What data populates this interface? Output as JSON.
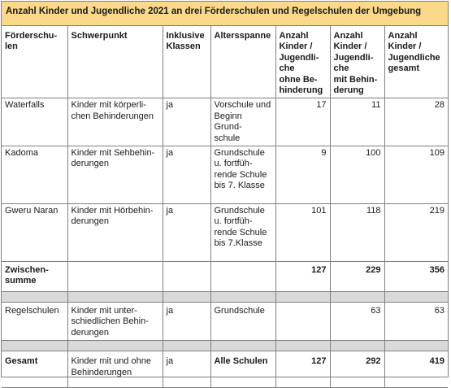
{
  "title": "Anzahl Kinder und Jugendliche 2021 an drei Förderschulen und Regelschulen der Umgebung",
  "headers": {
    "schule": "Förderschu-\nlen",
    "schwerpunkt": "Schwerpunkt",
    "inklusive": "Inklusive\nKlassen",
    "altersspanne": "Altersspanne",
    "ohne": "Anzahl\nKinder /\nJugendli-\nche\nohne Be-\nhinderung",
    "mit": "Anzahl\nKinder /\nJugendli-\nche\nmit Behin-\nderung",
    "gesamt": "Anzahl\nKinder /\nJugendliche\ngesamt"
  },
  "rows": [
    {
      "schule": "Waterfalls",
      "schwerpunkt": "Kinder mit körperli-\nchen  Behinderungen",
      "inklusive": "ja",
      "altersspanne": "Vorschule und\nBeginn Grund-\nschule",
      "ohne": "17",
      "mit": "11",
      "gesamt": "28"
    },
    {
      "schule": "Kadoma",
      "schwerpunkt": "Kinder mit Sehbehin-\nderungen",
      "inklusive": "ja",
      "altersspanne": "Grundschule\nu. fortfüh-\nrende Schule\nbis 7. Klasse",
      "ohne": "9",
      "mit": "100",
      "gesamt": "109"
    },
    {
      "schule": "Gweru Naran",
      "schwerpunkt": "Kinder mit Hörbehin-\nderungen",
      "inklusive": "ja",
      "altersspanne": "Grundschule\nu. fortfüh-\nrende Schule\nbis 7.Klasse",
      "ohne": "101",
      "mit": "118",
      "gesamt": "219"
    },
    {
      "schule": "Zwischen-\nsumme",
      "schwerpunkt": "",
      "inklusive": "",
      "altersspanne": "",
      "ohne": "127",
      "mit": "229",
      "gesamt": "356"
    },
    {
      "schule": "Regelschulen",
      "schwerpunkt": "Kinder mit unter-\nschiedlichen Behin-\nderungen",
      "inklusive": "ja",
      "altersspanne": "Grundschule",
      "ohne": "",
      "mit": "63",
      "gesamt": "63"
    },
    {
      "schule": "Gesamt",
      "schwerpunkt": "Kinder mit und ohne\nBehinderungen",
      "inklusive": "ja",
      "altersspanne": "Alle Schulen",
      "ohne": "127",
      "mit": "292",
      "gesamt": "419"
    }
  ]
}
